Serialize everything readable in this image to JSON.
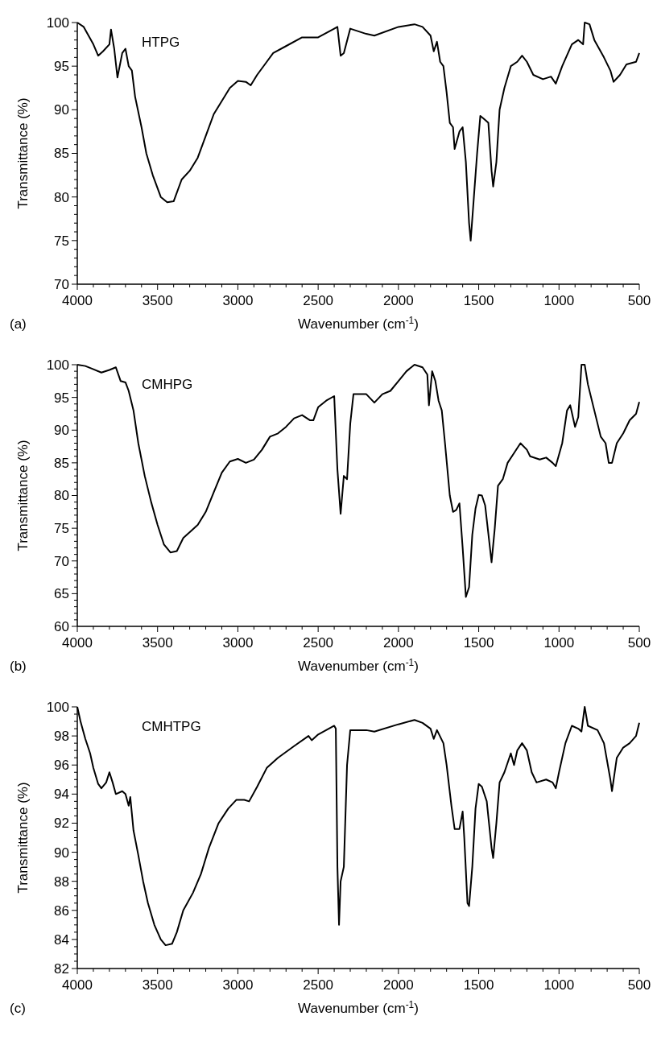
{
  "chart_data": [
    {
      "type": "line",
      "xlabel": "Wavenumber (cm$^{-1}$)",
      "ylabel": "Transmittance (%)",
      "annotations": [
        "(a)"
      ],
      "xlim": [
        4000,
        500
      ],
      "ylim": [
        70,
        100
      ],
      "grid": false,
      "legend": false,
      "xticks": [
        4000,
        {
          "value": 3900,
          "label": null
        },
        {
          "value": 3800,
          "label": null
        },
        {
          "value": 3700,
          "label": null
        },
        {
          "value": 3600,
          "label": null
        },
        3500,
        {
          "value": 3400,
          "label": null
        },
        {
          "value": 3300,
          "label": null
        },
        {
          "value": 3200,
          "label": null
        },
        {
          "value": 3100,
          "label": null
        },
        3000,
        {
          "value": 2900,
          "label": null
        },
        {
          "value": 2800,
          "label": null
        },
        {
          "value": 2700,
          "label": null
        },
        {
          "value": 2600,
          "label": null
        },
        2500,
        {
          "value": 2400,
          "label": null
        },
        {
          "value": 2300,
          "label": null
        },
        {
          "value": 2200,
          "label": null
        },
        {
          "value": 2100,
          "label": null
        },
        2000,
        {
          "value": 1900,
          "label": null
        },
        {
          "value": 1800,
          "label": null
        },
        {
          "value": 1700,
          "label": null
        },
        {
          "value": 1600,
          "label": null
        },
        1500,
        {
          "value": 1400,
          "label": null
        },
        {
          "value": 1300,
          "label": null
        },
        {
          "value": 1200,
          "label": null
        },
        {
          "value": 1100,
          "label": null
        },
        1000,
        {
          "value": 900,
          "label": null
        },
        {
          "value": 800,
          "label": null
        },
        {
          "value": 700,
          "label": null
        },
        {
          "value": 600,
          "label": null
        },
        500
      ],
      "yticks": [
        70,
        {
          "value": 71,
          "label": null
        },
        {
          "value": 72,
          "label": null
        },
        {
          "value": 73,
          "label": null
        },
        {
          "value": 74,
          "label": null
        },
        75,
        {
          "value": 76,
          "label": null
        },
        {
          "value": 77,
          "label": null
        },
        {
          "value": 78,
          "label": null
        },
        {
          "value": 79,
          "label": null
        },
        80,
        {
          "value": 81,
          "label": null
        },
        {
          "value": 82,
          "label": null
        },
        {
          "value": 83,
          "label": null
        },
        {
          "value": 84,
          "label": null
        },
        85,
        {
          "value": 86,
          "label": null
        },
        {
          "value": 87,
          "label": null
        },
        {
          "value": 88,
          "label": null
        },
        {
          "value": 89,
          "label": null
        },
        90,
        {
          "value": 91,
          "label": null
        },
        {
          "value": 92,
          "label": null
        },
        {
          "value": 93,
          "label": null
        },
        {
          "value": 94,
          "label": null
        },
        95,
        {
          "value": 96,
          "label": null
        },
        {
          "value": 97,
          "label": null
        },
        {
          "value": 98,
          "label": null
        },
        {
          "value": 99,
          "label": null
        },
        100
      ],
      "series": [
        {
          "name": "HTPG",
          "color": "#000000",
          "x": [
            4000,
            3960,
            3930,
            3900,
            3870,
            3840,
            3800,
            3790,
            3770,
            3750,
            3720,
            3700,
            3680,
            3660,
            3640,
            3600,
            3570,
            3530,
            3480,
            3440,
            3400,
            3350,
            3300,
            3250,
            3200,
            3150,
            3100,
            3050,
            3000,
            2950,
            2920,
            2880,
            2820,
            2780,
            2700,
            2600,
            2500,
            2400,
            2380,
            2360,
            2340,
            2300,
            2200,
            2150,
            2000,
            1900,
            1850,
            1800,
            1780,
            1760,
            1740,
            1720,
            1700,
            1680,
            1660,
            1650,
            1620,
            1600,
            1580,
            1560,
            1550,
            1530,
            1510,
            1490,
            1470,
            1440,
            1420,
            1410,
            1390,
            1370,
            1340,
            1300,
            1260,
            1230,
            1200,
            1160,
            1100,
            1050,
            1020,
            980,
            920,
            880,
            850,
            840,
            810,
            780,
            720,
            680,
            660,
            620,
            580,
            520,
            500
          ],
          "values": [
            100,
            99.5,
            98.5,
            97.5,
            96.2,
            96.7,
            97.5,
            99.2,
            97,
            93.7,
            96.5,
            97,
            95,
            94.5,
            91.5,
            88,
            85,
            82.5,
            80,
            79.4,
            79.5,
            82,
            83,
            84.5,
            87,
            89.5,
            91,
            92.5,
            93.3,
            93.2,
            92.8,
            94,
            95.5,
            96.5,
            97.3,
            98.3,
            98.3,
            99.3,
            99.5,
            96.2,
            96.5,
            99.3,
            98.7,
            98.5,
            99.5,
            99.8,
            99.5,
            98.5,
            96.7,
            97.8,
            95.5,
            95,
            92,
            88.5,
            88,
            85.5,
            87.5,
            88,
            84,
            77,
            75,
            80,
            85,
            89.3,
            89,
            88.5,
            83,
            81.2,
            84,
            90,
            92.5,
            95,
            95.5,
            96.2,
            95.5,
            94,
            93.5,
            93.8,
            93,
            95,
            97.5,
            98,
            97.5,
            100,
            99.8,
            98,
            96,
            94.5,
            93.2,
            94,
            95.2,
            95.5,
            96.5
          ]
        }
      ]
    },
    {
      "type": "line",
      "xlabel": "Wavenumber (cm$^{-1}$)",
      "ylabel": "Transmittance (%)",
      "annotations": [
        "(b)"
      ],
      "xlim": [
        4000,
        500
      ],
      "ylim": [
        60,
        100
      ],
      "grid": false,
      "legend": false,
      "xticks": [
        4000,
        {
          "value": 3900,
          "label": null
        },
        {
          "value": 3800,
          "label": null
        },
        {
          "value": 3700,
          "label": null
        },
        {
          "value": 3600,
          "label": null
        },
        3500,
        {
          "value": 3400,
          "label": null
        },
        {
          "value": 3300,
          "label": null
        },
        {
          "value": 3200,
          "label": null
        },
        {
          "value": 3100,
          "label": null
        },
        3000,
        {
          "value": 2900,
          "label": null
        },
        {
          "value": 2800,
          "label": null
        },
        {
          "value": 2700,
          "label": null
        },
        {
          "value": 2600,
          "label": null
        },
        2500,
        {
          "value": 2400,
          "label": null
        },
        {
          "value": 2300,
          "label": null
        },
        {
          "value": 2200,
          "label": null
        },
        {
          "value": 2100,
          "label": null
        },
        2000,
        {
          "value": 1900,
          "label": null
        },
        {
          "value": 1800,
          "label": null
        },
        {
          "value": 1700,
          "label": null
        },
        {
          "value": 1600,
          "label": null
        },
        1500,
        {
          "value": 1400,
          "label": null
        },
        {
          "value": 1300,
          "label": null
        },
        {
          "value": 1200,
          "label": null
        },
        {
          "value": 1100,
          "label": null
        },
        1000,
        {
          "value": 900,
          "label": null
        },
        {
          "value": 800,
          "label": null
        },
        {
          "value": 700,
          "label": null
        },
        {
          "value": 600,
          "label": null
        },
        500
      ],
      "yticks": [
        60,
        {
          "value": 61,
          "label": null
        },
        {
          "value": 62,
          "label": null
        },
        {
          "value": 63,
          "label": null
        },
        {
          "value": 64,
          "label": null
        },
        65,
        {
          "value": 66,
          "label": null
        },
        {
          "value": 67,
          "label": null
        },
        {
          "value": 68,
          "label": null
        },
        {
          "value": 69,
          "label": null
        },
        70,
        {
          "value": 71,
          "label": null
        },
        {
          "value": 72,
          "label": null
        },
        {
          "value": 73,
          "label": null
        },
        {
          "value": 74,
          "label": null
        },
        75,
        {
          "value": 76,
          "label": null
        },
        {
          "value": 77,
          "label": null
        },
        {
          "value": 78,
          "label": null
        },
        {
          "value": 79,
          "label": null
        },
        80,
        {
          "value": 81,
          "label": null
        },
        {
          "value": 82,
          "label": null
        },
        {
          "value": 83,
          "label": null
        },
        {
          "value": 84,
          "label": null
        },
        85,
        {
          "value": 86,
          "label": null
        },
        {
          "value": 87,
          "label": null
        },
        {
          "value": 88,
          "label": null
        },
        {
          "value": 89,
          "label": null
        },
        90,
        {
          "value": 91,
          "label": null
        },
        {
          "value": 92,
          "label": null
        },
        {
          "value": 93,
          "label": null
        },
        {
          "value": 94,
          "label": null
        },
        95,
        {
          "value": 96,
          "label": null
        },
        {
          "value": 97,
          "label": null
        },
        {
          "value": 98,
          "label": null
        },
        {
          "value": 99,
          "label": null
        },
        100
      ],
      "series": [
        {
          "name": "CMHPG",
          "color": "#000000",
          "x": [
            4000,
            3950,
            3900,
            3850,
            3800,
            3760,
            3730,
            3700,
            3680,
            3650,
            3620,
            3580,
            3540,
            3500,
            3460,
            3420,
            3380,
            3340,
            3250,
            3200,
            3150,
            3100,
            3050,
            3000,
            2950,
            2900,
            2850,
            2800,
            2750,
            2700,
            2650,
            2600,
            2550,
            2530,
            2500,
            2450,
            2400,
            2380,
            2360,
            2340,
            2320,
            2300,
            2280,
            2250,
            2200,
            2150,
            2100,
            2050,
            2000,
            1950,
            1900,
            1850,
            1820,
            1810,
            1790,
            1770,
            1750,
            1730,
            1710,
            1680,
            1660,
            1640,
            1620,
            1600,
            1580,
            1560,
            1540,
            1520,
            1500,
            1480,
            1460,
            1430,
            1420,
            1400,
            1380,
            1350,
            1320,
            1280,
            1240,
            1200,
            1180,
            1120,
            1080,
            1040,
            1020,
            980,
            950,
            930,
            900,
            880,
            860,
            840,
            820,
            780,
            740,
            710,
            690,
            670,
            640,
            600,
            560,
            520,
            500
          ],
          "values": [
            100,
            99.8,
            99.3,
            98.8,
            99.2,
            99.6,
            97.5,
            97.3,
            96,
            93,
            88,
            83,
            79,
            75.5,
            72.5,
            71.3,
            71.5,
            73.5,
            75.5,
            77.5,
            80.5,
            83.5,
            85.2,
            85.6,
            85,
            85.5,
            87,
            89,
            89.5,
            90.5,
            91.8,
            92.3,
            91.5,
            91.5,
            93.5,
            94.5,
            95.2,
            84,
            77.2,
            83,
            82.5,
            91,
            95.5,
            95.5,
            95.5,
            94.2,
            95.5,
            96,
            97.5,
            99,
            100,
            99.6,
            98.5,
            93.8,
            99,
            97.5,
            94.5,
            93,
            88,
            80,
            77.5,
            77.8,
            78.8,
            72,
            64.5,
            66,
            74,
            78,
            80.1,
            80,
            78.5,
            72,
            69.8,
            75,
            81.5,
            82.5,
            85,
            86.5,
            88,
            87,
            86,
            85.5,
            85.8,
            85,
            84.5,
            88,
            93,
            93.8,
            90.5,
            92,
            100,
            100,
            97,
            93,
            89,
            88,
            85,
            85,
            88,
            89.5,
            91.5,
            92.5,
            94.3
          ]
        }
      ]
    },
    {
      "type": "line",
      "xlabel": "Wavenumber (cm$^{-1}$)",
      "ylabel": "Transmittance (%)",
      "annotations": [
        "(c)"
      ],
      "xlim": [
        4000,
        500
      ],
      "ylim": [
        82,
        100
      ],
      "grid": false,
      "legend": false,
      "xticks": [
        4000,
        {
          "value": 3900,
          "label": null
        },
        {
          "value": 3800,
          "label": null
        },
        {
          "value": 3700,
          "label": null
        },
        {
          "value": 3600,
          "label": null
        },
        3500,
        {
          "value": 3400,
          "label": null
        },
        {
          "value": 3300,
          "label": null
        },
        {
          "value": 3200,
          "label": null
        },
        {
          "value": 3100,
          "label": null
        },
        3000,
        {
          "value": 2900,
          "label": null
        },
        {
          "value": 2800,
          "label": null
        },
        {
          "value": 2700,
          "label": null
        },
        {
          "value": 2600,
          "label": null
        },
        2500,
        {
          "value": 2400,
          "label": null
        },
        {
          "value": 2300,
          "label": null
        },
        {
          "value": 2200,
          "label": null
        },
        {
          "value": 2100,
          "label": null
        },
        2000,
        {
          "value": 1900,
          "label": null
        },
        {
          "value": 1800,
          "label": null
        },
        {
          "value": 1700,
          "label": null
        },
        {
          "value": 1600,
          "label": null
        },
        1500,
        {
          "value": 1400,
          "label": null
        },
        {
          "value": 1300,
          "label": null
        },
        {
          "value": 1200,
          "label": null
        },
        {
          "value": 1100,
          "label": null
        },
        1000,
        {
          "value": 900,
          "label": null
        },
        {
          "value": 800,
          "label": null
        },
        {
          "value": 700,
          "label": null
        },
        {
          "value": 600,
          "label": null
        },
        500
      ],
      "yticks": [
        82,
        {
          "value": 82.5,
          "label": null
        },
        {
          "value": 83,
          "label": null
        },
        {
          "value": 83.5,
          "label": null
        },
        84,
        {
          "value": 84.5,
          "label": null
        },
        {
          "value": 85,
          "label": null
        },
        {
          "value": 85.5,
          "label": null
        },
        86,
        {
          "value": 86.5,
          "label": null
        },
        {
          "value": 87,
          "label": null
        },
        {
          "value": 87.5,
          "label": null
        },
        88,
        {
          "value": 88.5,
          "label": null
        },
        {
          "value": 89,
          "label": null
        },
        {
          "value": 89.5,
          "label": null
        },
        90,
        {
          "value": 90.5,
          "label": null
        },
        {
          "value": 91,
          "label": null
        },
        {
          "value": 91.5,
          "label": null
        },
        92,
        {
          "value": 92.5,
          "label": null
        },
        {
          "value": 93,
          "label": null
        },
        {
          "value": 93.5,
          "label": null
        },
        94,
        {
          "value": 94.5,
          "label": null
        },
        {
          "value": 95,
          "label": null
        },
        {
          "value": 95.5,
          "label": null
        },
        96,
        {
          "value": 96.5,
          "label": null
        },
        {
          "value": 97,
          "label": null
        },
        {
          "value": 97.5,
          "label": null
        },
        98,
        {
          "value": 98.5,
          "label": null
        },
        {
          "value": 99,
          "label": null
        },
        {
          "value": 99.5,
          "label": null
        },
        100
      ],
      "series": [
        {
          "name": "CMHTPG",
          "color": "#000000",
          "x": [
            4000,
            3980,
            3950,
            3920,
            3900,
            3870,
            3850,
            3820,
            3800,
            3780,
            3760,
            3720,
            3700,
            3680,
            3670,
            3650,
            3620,
            3590,
            3560,
            3520,
            3480,
            3450,
            3410,
            3380,
            3340,
            3280,
            3230,
            3180,
            3120,
            3060,
            3010,
            2960,
            2930,
            2880,
            2820,
            2750,
            2650,
            2560,
            2540,
            2500,
            2400,
            2390,
            2380,
            2370,
            2360,
            2340,
            2320,
            2300,
            2200,
            2150,
            2000,
            1900,
            1850,
            1800,
            1780,
            1760,
            1720,
            1700,
            1670,
            1650,
            1620,
            1600,
            1590,
            1570,
            1560,
            1540,
            1520,
            1500,
            1480,
            1450,
            1420,
            1410,
            1390,
            1370,
            1340,
            1300,
            1280,
            1260,
            1230,
            1200,
            1170,
            1140,
            1080,
            1040,
            1020,
            1000,
            960,
            920,
            880,
            860,
            840,
            820,
            760,
            720,
            680,
            670,
            640,
            600,
            560,
            520,
            500
          ],
          "values": [
            100,
            99,
            97.8,
            96.8,
            95.8,
            94.7,
            94.4,
            94.8,
            95.5,
            94.8,
            94,
            94.2,
            94,
            93.2,
            93.8,
            91.5,
            89.8,
            88,
            86.5,
            85,
            84,
            83.6,
            83.7,
            84.5,
            86,
            87.2,
            88.5,
            90.3,
            92,
            93,
            93.6,
            93.6,
            93.5,
            94.5,
            95.8,
            96.5,
            97.3,
            98,
            97.7,
            98.1,
            98.7,
            98.5,
            89,
            85,
            88,
            89,
            96,
            98.4,
            98.4,
            98.3,
            98.8,
            99.1,
            98.9,
            98.5,
            97.8,
            98.4,
            97.5,
            96,
            93.2,
            91.6,
            91.6,
            92.8,
            91,
            86.5,
            86.3,
            89,
            93,
            94.7,
            94.5,
            93.5,
            90.3,
            89.6,
            92,
            94.8,
            95.5,
            96.8,
            96,
            97,
            97.5,
            97,
            95.5,
            94.8,
            95,
            94.8,
            94.4,
            95.5,
            97.5,
            98.7,
            98.5,
            98.3,
            100,
            98.7,
            98.4,
            97.5,
            95,
            94.2,
            96.5,
            97.2,
            97.5,
            98,
            98.9
          ]
        }
      ]
    }
  ]
}
